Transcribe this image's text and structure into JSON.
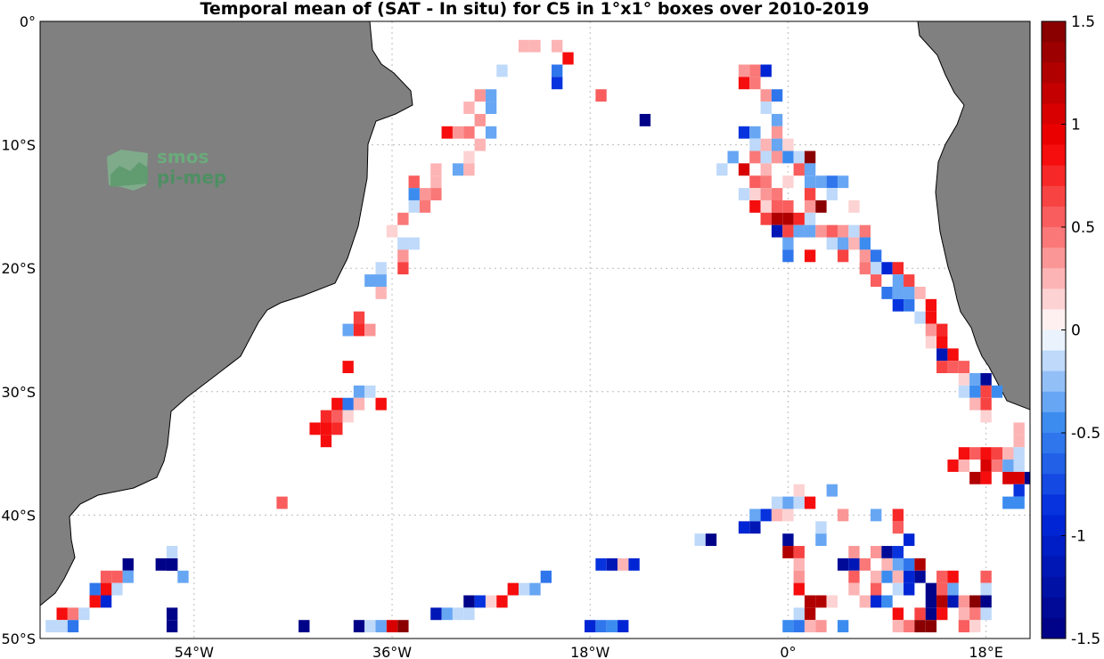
{
  "title": "Temporal mean of (SAT - In situ) for C5 in 1°x1° boxes over 2010-2019",
  "logo": {
    "line1": "smos",
    "line2": "pi-mep"
  },
  "map": {
    "lon_range": [
      -68,
      22
    ],
    "lat_range": [
      -50,
      0
    ],
    "lat_ticks": [
      {
        "value": 0,
        "label": "0°"
      },
      {
        "value": -10,
        "label": "10°S"
      },
      {
        "value": -20,
        "label": "20°S"
      },
      {
        "value": -30,
        "label": "30°S"
      },
      {
        "value": -40,
        "label": "40°S"
      },
      {
        "value": -50,
        "label": "50°S"
      }
    ],
    "lon_ticks": [
      {
        "value": -54,
        "label": "54°W"
      },
      {
        "value": -36,
        "label": "36°W"
      },
      {
        "value": -18,
        "label": "18°W"
      },
      {
        "value": 0,
        "label": "0°"
      },
      {
        "value": 18,
        "label": "18°E"
      }
    ],
    "land_color": "#808080",
    "grid": true
  },
  "colorbar": {
    "range": [
      -1.5,
      1.5
    ],
    "levels": 30,
    "tick_labels": [
      {
        "value": 1.5,
        "label": "1.5"
      },
      {
        "value": 1,
        "label": "1"
      },
      {
        "value": 0.5,
        "label": "0.5"
      },
      {
        "value": 0,
        "label": "0"
      },
      {
        "value": -0.5,
        "label": "-0.5"
      },
      {
        "value": -1,
        "label": "-1"
      },
      {
        "value": -1.5,
        "label": "-1.5"
      }
    ]
  },
  "chart_data": {
    "type": "heatmap",
    "title": "Temporal mean of (SAT - In situ) for C5 in 1°x1° boxes over 2010-2019",
    "xlim": [
      -68,
      22
    ],
    "ylim": [
      -50,
      0
    ],
    "cells_lon_lat_value": [
      [
        -24,
        -2,
        0.2
      ],
      [
        -23,
        -2,
        0.2
      ],
      [
        -21,
        -2,
        0.2
      ],
      [
        -20,
        -3,
        0.9
      ],
      [
        -21,
        -4,
        -0.6
      ],
      [
        -21,
        -5,
        -0.8
      ],
      [
        -26,
        -4,
        -0.1
      ],
      [
        -27,
        -6,
        -0.4
      ],
      [
        -28,
        -6,
        0.3
      ],
      [
        -27,
        -7,
        -0.3
      ],
      [
        -29,
        -7,
        0.2
      ],
      [
        -28,
        -8,
        0.3
      ],
      [
        -30,
        -9,
        0.3
      ],
      [
        -29,
        -9,
        0.4
      ],
      [
        -27,
        -9,
        -0.3
      ],
      [
        -31,
        -9,
        0.8
      ],
      [
        -28,
        -10,
        0.2
      ],
      [
        -29,
        -11,
        0.1
      ],
      [
        -30,
        -12,
        -0.3
      ],
      [
        -29,
        -12,
        0.2
      ],
      [
        -32,
        -12,
        0.2
      ],
      [
        -32,
        -13,
        0.2
      ],
      [
        -34,
        -13,
        0.5
      ],
      [
        -33,
        -14,
        0.3
      ],
      [
        -34,
        -14,
        -0.5
      ],
      [
        -32,
        -14,
        0.4
      ],
      [
        -34,
        -15,
        -0.2
      ],
      [
        -33,
        -15,
        0.4
      ],
      [
        -35,
        -16,
        0.4
      ],
      [
        -36,
        -17,
        0.1
      ],
      [
        -35,
        -18,
        -0.1
      ],
      [
        -34,
        -18,
        -0.2
      ],
      [
        -35,
        -19,
        0.3
      ],
      [
        -37,
        -20,
        -0.1
      ],
      [
        -35,
        -20,
        0.6
      ],
      [
        -38,
        -21,
        -0.4
      ],
      [
        -37,
        -21,
        -0.3
      ],
      [
        -37,
        -22,
        0.2
      ],
      [
        -39,
        -24,
        0.6
      ],
      [
        -40,
        -25,
        -0.4
      ],
      [
        -39,
        -25,
        0.7
      ],
      [
        -38,
        -25,
        0.3
      ],
      [
        -40,
        -28,
        0.8
      ],
      [
        -39,
        -30,
        -0.4
      ],
      [
        -38,
        -30,
        -0.1
      ],
      [
        -41,
        -31,
        0.8
      ],
      [
        -40,
        -31,
        -0.6
      ],
      [
        -39,
        -31,
        0.2
      ],
      [
        -37,
        -31,
        0.8
      ],
      [
        -42,
        -32,
        0.7
      ],
      [
        -41,
        -32,
        0.5
      ],
      [
        -40,
        -32,
        0.1
      ],
      [
        -43,
        -33,
        0.8
      ],
      [
        -42,
        -33,
        0.8
      ],
      [
        -41,
        -33,
        0.7
      ],
      [
        -42,
        -34,
        0.8
      ],
      [
        -46,
        -39,
        0.5
      ],
      [
        -17,
        -6,
        0.5
      ],
      [
        -13,
        -8,
        -1.5
      ],
      [
        -4,
        -4,
        0.3
      ],
      [
        -3,
        -4,
        0.4
      ],
      [
        -2,
        -4,
        -1.0
      ],
      [
        -4,
        -5,
        0.9
      ],
      [
        -3,
        -5,
        0.4
      ],
      [
        -2,
        -6,
        0.3
      ],
      [
        -1,
        -6,
        -0.6
      ],
      [
        -2,
        -7,
        -0.2
      ],
      [
        -1,
        -8,
        -0.3
      ],
      [
        -4,
        -9,
        -0.8
      ],
      [
        -3,
        -9,
        -0.4
      ],
      [
        -1,
        -9,
        0.3
      ],
      [
        -2,
        -10,
        0.2
      ],
      [
        -1,
        -10,
        -0.3
      ],
      [
        0,
        -10,
        0.1
      ],
      [
        -3,
        -10,
        -0.1
      ],
      [
        -5,
        -11,
        -0.3
      ],
      [
        -3,
        -11,
        0.4
      ],
      [
        -2,
        -11,
        -0.1
      ],
      [
        -1,
        -11,
        0.3
      ],
      [
        0,
        -11,
        -0.5
      ],
      [
        1,
        -11,
        -0.2
      ],
      [
        2,
        -11,
        1.4
      ],
      [
        -6,
        -12,
        -0.2
      ],
      [
        -4,
        -12,
        1.0
      ],
      [
        -2,
        -12,
        0.2
      ],
      [
        1,
        -12,
        0.5
      ],
      [
        2,
        -12,
        -0.4
      ],
      [
        -3,
        -13,
        0.5
      ],
      [
        -2,
        -13,
        0.4
      ],
      [
        0,
        -13,
        0.1
      ],
      [
        2,
        -13,
        -0.3
      ],
      [
        3,
        -13,
        -0.3
      ],
      [
        4,
        -13,
        -0.6
      ],
      [
        5,
        -13,
        -0.3
      ],
      [
        -4,
        -14,
        -0.1
      ],
      [
        -3,
        -14,
        0.1
      ],
      [
        -2,
        -14,
        0.3
      ],
      [
        -1,
        -14,
        0.4
      ],
      [
        2,
        -14,
        0.6
      ],
      [
        4,
        -14,
        -0.2
      ],
      [
        -3,
        -15,
        0.9
      ],
      [
        -2,
        -15,
        0.1
      ],
      [
        -1,
        -15,
        0.5
      ],
      [
        0,
        -15,
        0.5
      ],
      [
        2,
        -15,
        0.3
      ],
      [
        3,
        -15,
        1.4
      ],
      [
        6,
        -15,
        0.1
      ],
      [
        -2,
        -16,
        0.6
      ],
      [
        -1,
        -16,
        1.3
      ],
      [
        0,
        -16,
        1.3
      ],
      [
        1,
        -16,
        0.7
      ],
      [
        2,
        -16,
        -0.1
      ],
      [
        -1,
        -17,
        -1.2
      ],
      [
        0,
        -17,
        0.6
      ],
      [
        1,
        -17,
        -0.3
      ],
      [
        2,
        -17,
        -0.3
      ],
      [
        3,
        -17,
        0.3
      ],
      [
        4,
        -17,
        0.5
      ],
      [
        5,
        -17,
        0.3
      ],
      [
        6,
        -17,
        -0.2
      ],
      [
        7,
        -17,
        0.4
      ],
      [
        0,
        -18,
        -0.3
      ],
      [
        4,
        -18,
        -0.2
      ],
      [
        5,
        -18,
        -0.3
      ],
      [
        6,
        -18,
        0.2
      ],
      [
        7,
        -18,
        -0.5
      ],
      [
        0,
        -19,
        -0.6
      ],
      [
        2,
        -19,
        0.9
      ],
      [
        5,
        -19,
        0.6
      ],
      [
        7,
        -19,
        0.3
      ],
      [
        8,
        -19,
        -0.6
      ],
      [
        7,
        -20,
        0.4
      ],
      [
        8,
        -20,
        -0.1
      ],
      [
        9,
        -20,
        -0.9
      ],
      [
        10,
        -20,
        0.7
      ],
      [
        8,
        -21,
        0.5
      ],
      [
        10,
        -21,
        -0.4
      ],
      [
        11,
        -21,
        0.6
      ],
      [
        9,
        -22,
        -0.6
      ],
      [
        10,
        -22,
        -0.3
      ],
      [
        11,
        -22,
        -0.4
      ],
      [
        12,
        -22,
        0.2
      ],
      [
        10,
        -23,
        -0.8
      ],
      [
        11,
        -23,
        -0.6
      ],
      [
        13,
        -23,
        0.8
      ],
      [
        12,
        -24,
        -0.1
      ],
      [
        13,
        -24,
        0.8
      ],
      [
        13,
        -25,
        0.3
      ],
      [
        14,
        -25,
        0.7
      ],
      [
        13,
        -26,
        0.1
      ],
      [
        14,
        -26,
        0.8
      ],
      [
        14,
        -27,
        -1.2
      ],
      [
        15,
        -27,
        0.8
      ],
      [
        14,
        -28,
        0.6
      ],
      [
        15,
        -28,
        0.5
      ],
      [
        16,
        -28,
        0.5
      ],
      [
        16,
        -29,
        0.1
      ],
      [
        17,
        -29,
        -0.3
      ],
      [
        18,
        -29,
        -1.3
      ],
      [
        16,
        -30,
        -0.1
      ],
      [
        17,
        -30,
        -0.5
      ],
      [
        18,
        -30,
        0.6
      ],
      [
        19,
        -30,
        -0.5
      ],
      [
        17,
        -31,
        0.2
      ],
      [
        18,
        -31,
        0.6
      ],
      [
        18,
        -32,
        0.1
      ],
      [
        21,
        -33,
        0.2
      ],
      [
        21,
        -34,
        0.2
      ],
      [
        16,
        -35,
        0.8
      ],
      [
        17,
        -35,
        0.5
      ],
      [
        18,
        -35,
        0.8
      ],
      [
        19,
        -35,
        0.6
      ],
      [
        20,
        -35,
        0.2
      ],
      [
        21,
        -35,
        -0.2
      ],
      [
        15,
        -36,
        0.8
      ],
      [
        16,
        -36,
        0.2
      ],
      [
        18,
        -36,
        1.0
      ],
      [
        19,
        -36,
        0.4
      ],
      [
        20,
        -36,
        -0.3
      ],
      [
        21,
        -36,
        -0.1
      ],
      [
        17,
        -37,
        1.2
      ],
      [
        18,
        -37,
        0.8
      ],
      [
        20,
        -37,
        1.0
      ],
      [
        21,
        -37,
        1.0
      ],
      [
        22,
        -37,
        -1.5
      ],
      [
        1,
        -38,
        0.1
      ],
      [
        4,
        -38,
        -0.4
      ],
      [
        21,
        -38,
        -0.8
      ],
      [
        -1,
        -39,
        -0.1
      ],
      [
        0,
        -39,
        -0.3
      ],
      [
        1,
        -39,
        -0.2
      ],
      [
        2,
        -39,
        0.9
      ],
      [
        20,
        -39,
        -0.5
      ],
      [
        21,
        -39,
        -0.5
      ],
      [
        -3,
        -40,
        -0.3
      ],
      [
        -2,
        -40,
        -0.8
      ],
      [
        -1,
        -40,
        0.2
      ],
      [
        0,
        -40,
        0.1
      ],
      [
        5,
        -40,
        0.3
      ],
      [
        8,
        -40,
        -0.3
      ],
      [
        10,
        -40,
        0.7
      ],
      [
        -4,
        -41,
        -1.0
      ],
      [
        -3,
        -41,
        -1.2
      ],
      [
        3,
        -41,
        -0.1
      ],
      [
        10,
        -41,
        0.5
      ],
      [
        -8,
        -42,
        -0.2
      ],
      [
        -7,
        -42,
        -1.5
      ],
      [
        0,
        -42,
        -1.4
      ],
      [
        3,
        -42,
        -0.4
      ],
      [
        11,
        -42,
        -1.0
      ],
      [
        0,
        -43,
        1.3
      ],
      [
        1,
        -43,
        0.6
      ],
      [
        6,
        -43,
        0.3
      ],
      [
        8,
        -43,
        0.3
      ],
      [
        9,
        -43,
        -1.3
      ],
      [
        10,
        -43,
        -0.8
      ],
      [
        -17,
        -44,
        -0.8
      ],
      [
        -16,
        -44,
        -1.1
      ],
      [
        -15,
        -44,
        0.2
      ],
      [
        -14,
        -44,
        -1.0
      ],
      [
        1,
        -44,
        0.2
      ],
      [
        5,
        -44,
        -1.4
      ],
      [
        6,
        -44,
        -1.1
      ],
      [
        7,
        -44,
        0.4
      ],
      [
        9,
        -44,
        0.2
      ],
      [
        10,
        -44,
        -0.4
      ],
      [
        11,
        -44,
        -0.6
      ],
      [
        12,
        -44,
        1.3
      ],
      [
        -22,
        -45,
        -0.6
      ],
      [
        1,
        -45,
        0.3
      ],
      [
        6,
        -45,
        0.5
      ],
      [
        8,
        -45,
        0.2
      ],
      [
        9,
        -45,
        -0.5
      ],
      [
        10,
        -45,
        0.2
      ],
      [
        11,
        -45,
        -0.9
      ],
      [
        12,
        -45,
        -1.3
      ],
      [
        14,
        -45,
        0.5
      ],
      [
        15,
        -45,
        0.8
      ],
      [
        18,
        -45,
        0.5
      ],
      [
        -25,
        -46,
        0.8
      ],
      [
        -24,
        -46,
        -0.2
      ],
      [
        -23,
        -46,
        -0.4
      ],
      [
        1,
        -46,
        0.8
      ],
      [
        6,
        -46,
        0.2
      ],
      [
        8,
        -46,
        0.5
      ],
      [
        10,
        -46,
        -0.2
      ],
      [
        11,
        -46,
        -1.0
      ],
      [
        13,
        -46,
        -1.5
      ],
      [
        14,
        -46,
        0.5
      ],
      [
        15,
        -46,
        -0.3
      ],
      [
        18,
        -46,
        -0.1
      ],
      [
        -29,
        -47,
        -1.5
      ],
      [
        -28,
        -47,
        -0.8
      ],
      [
        -27,
        -47,
        0.1
      ],
      [
        -26,
        -47,
        0.9
      ],
      [
        2,
        -47,
        1.3
      ],
      [
        3,
        -47,
        1.3
      ],
      [
        4,
        -47,
        0.1
      ],
      [
        7,
        -47,
        0.2
      ],
      [
        8,
        -47,
        -1.0
      ],
      [
        9,
        -47,
        -0.5
      ],
      [
        13,
        -47,
        -1.5
      ],
      [
        14,
        -47,
        1.2
      ],
      [
        15,
        -47,
        -1.2
      ],
      [
        16,
        -47,
        0.3
      ],
      [
        17,
        -47,
        1.4
      ],
      [
        18,
        -47,
        -1.5
      ],
      [
        -32,
        -48,
        -1.2
      ],
      [
        -31,
        -48,
        -0.4
      ],
      [
        -30,
        -48,
        -0.1
      ],
      [
        -29,
        -48,
        -0.1
      ],
      [
        1,
        -48,
        -0.1
      ],
      [
        2,
        -48,
        1.2
      ],
      [
        10,
        -48,
        0.8
      ],
      [
        12,
        -48,
        0.6
      ],
      [
        13,
        -48,
        -1.5
      ],
      [
        14,
        -48,
        0.8
      ],
      [
        16,
        -48,
        0.2
      ],
      [
        17,
        -48,
        0.4
      ],
      [
        18,
        -48,
        -0.1
      ],
      [
        -18,
        -49,
        -0.9
      ],
      [
        -17,
        -49,
        -0.6
      ],
      [
        -16,
        -49,
        -0.5
      ],
      [
        -15,
        -49,
        -0.9
      ],
      [
        0,
        -49,
        -0.5
      ],
      [
        1,
        -49,
        -0.6
      ],
      [
        2,
        -49,
        0.2
      ],
      [
        3,
        -49,
        0.3
      ],
      [
        5,
        -49,
        -0.5
      ],
      [
        10,
        -49,
        0.2
      ],
      [
        11,
        -49,
        0.4
      ],
      [
        12,
        -49,
        1.4
      ],
      [
        13,
        -49,
        1.4
      ],
      [
        16,
        -49,
        0.5
      ],
      [
        17,
        -49,
        0.1
      ],
      [
        -56,
        -44,
        -1.5
      ],
      [
        -56,
        -44,
        -1.5
      ],
      [
        -57,
        -44,
        -1.5
      ],
      [
        -60,
        -44,
        -1.5
      ],
      [
        -55,
        -45,
        -0.4
      ],
      [
        -60,
        -45,
        -0.3
      ],
      [
        -61,
        -45,
        0.5
      ],
      [
        -62,
        -45,
        0.5
      ],
      [
        -61,
        -46,
        -0.1
      ],
      [
        -62,
        -46,
        0.8
      ],
      [
        -63,
        -46,
        -0.6
      ],
      [
        -63,
        -47,
        0.8
      ],
      [
        -62,
        -47,
        -0.9
      ],
      [
        -66,
        -48,
        0.8
      ],
      [
        -65,
        -48,
        0.4
      ],
      [
        -64,
        -48,
        -0.2
      ],
      [
        -67,
        -49,
        -0.1
      ],
      [
        -66,
        -49,
        -0.1
      ],
      [
        -65,
        -49,
        -0.6
      ],
      [
        -56,
        -43,
        -0.1
      ],
      [
        -44,
        -49,
        -1.5
      ],
      [
        -56,
        -48,
        -1.5
      ],
      [
        -56,
        -49,
        -1.5
      ],
      [
        -39,
        -49,
        -1.5
      ],
      [
        -38,
        -49,
        -0.2
      ],
      [
        -37,
        -49,
        -0.4
      ],
      [
        -36,
        -49,
        1.0
      ],
      [
        -35,
        -49,
        1.4
      ]
    ]
  }
}
